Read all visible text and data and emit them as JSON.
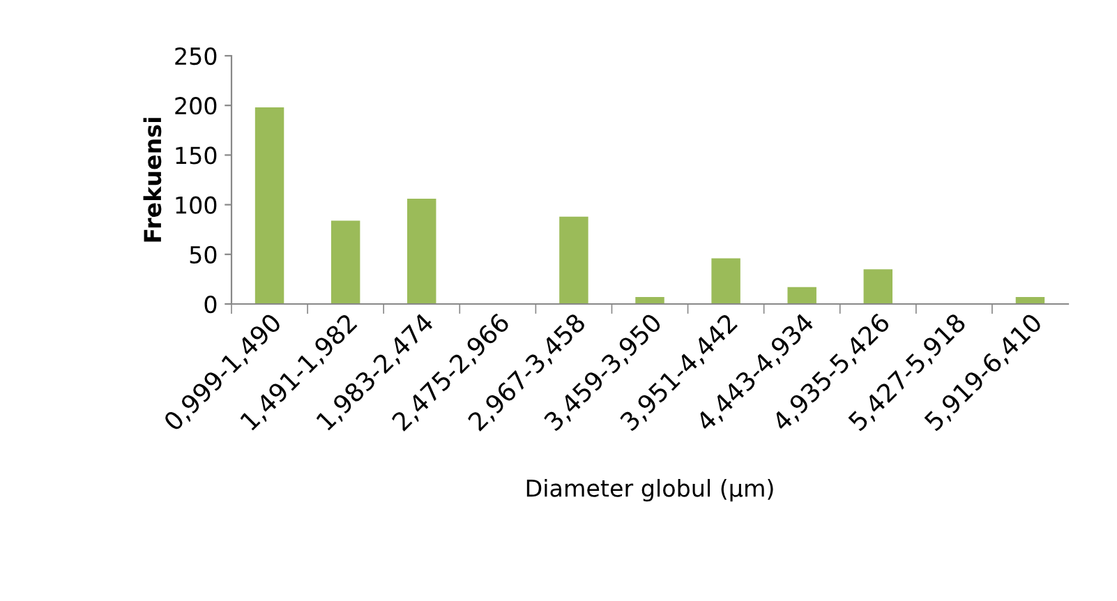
{
  "chart_data": {
    "type": "bar",
    "xlabel": "Diameter globul (µm)",
    "ylabel": "Frekuensi",
    "categories": [
      "0,999-1,490",
      "1,491-1,982",
      "1,983-2,474",
      "2,475-2,966",
      "2,967-3,458",
      "3,459-3,950",
      "3,951-4,442",
      "4,443-4,934",
      "4,935-5,426",
      "5,427-5,918",
      "5,919-6,410"
    ],
    "values": [
      198,
      84,
      106,
      0,
      88,
      7,
      46,
      17,
      35,
      0,
      7
    ],
    "color": "#9bbb59",
    "ylim": [
      0,
      250
    ],
    "yticks": [
      0,
      50,
      100,
      150,
      200,
      250
    ],
    "grid": false
  }
}
